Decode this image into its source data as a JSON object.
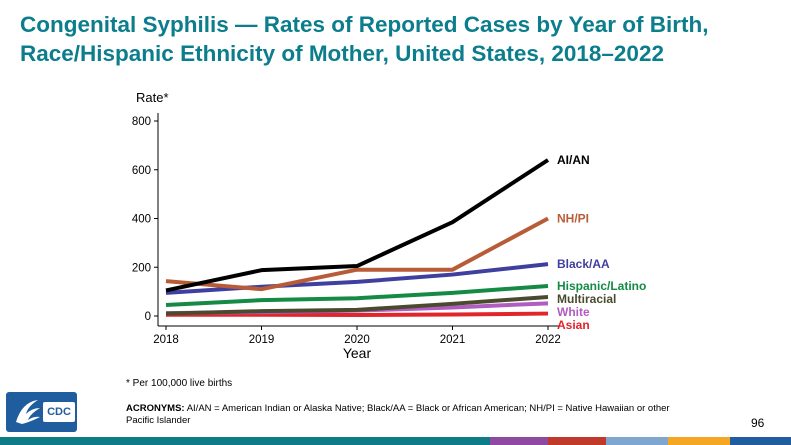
{
  "page": {
    "title": "Congenital Syphilis — Rates of Reported Cases by Year of Birth, Race/Hispanic Ethnicity of Mother, United States, 2018–2022",
    "footnote": "* Per 100,000 live births",
    "acronyms_label": "ACRONYMS:",
    "acronyms_text": " AI/AN = American Indian or Alaska Native; Black/AA = Black or African American; NH/PI = Native Hawaiian or other Pacific Islander",
    "page_number": "96",
    "logo_text": "CDC",
    "logo_icon": "hhs-eagle-icon",
    "title_color": "#0b7d8c",
    "bottom_bar_colors": [
      "#0e7c86",
      "#8e4aa0",
      "#c0392b",
      "#7ea6cf",
      "#f5a623",
      "#1f5d9f"
    ]
  },
  "chart_data": {
    "type": "line",
    "ylabel": "Rate*",
    "xlabel": "Year",
    "x": [
      2018,
      2019,
      2020,
      2021,
      2022
    ],
    "ylim": [
      0,
      800
    ],
    "yticks": [
      0,
      200,
      400,
      600,
      800
    ],
    "grid": false,
    "legend": "inline-right",
    "series": [
      {
        "name": "AI/AN",
        "color": "#000000",
        "values": [
          105,
          188,
          205,
          385,
          640
        ]
      },
      {
        "name": "NH/PI",
        "color": "#b85c38",
        "values": [
          143,
          110,
          190,
          190,
          400
        ]
      },
      {
        "name": "Black/AA",
        "color": "#3e3f9e",
        "values": [
          95,
          120,
          140,
          170,
          213
        ]
      },
      {
        "name": "Hispanic/Latino",
        "color": "#148a45",
        "values": [
          45,
          65,
          73,
          95,
          123
        ]
      },
      {
        "name": "Multiracial",
        "color": "#4a4a2e",
        "values": [
          10,
          20,
          25,
          50,
          78
        ]
      },
      {
        "name": "White",
        "color": "#b05cc0",
        "values": [
          12,
          16,
          22,
          35,
          52
        ]
      },
      {
        "name": "Asian",
        "color": "#e0262b",
        "values": [
          5,
          5,
          4,
          6,
          10
        ]
      }
    ]
  }
}
